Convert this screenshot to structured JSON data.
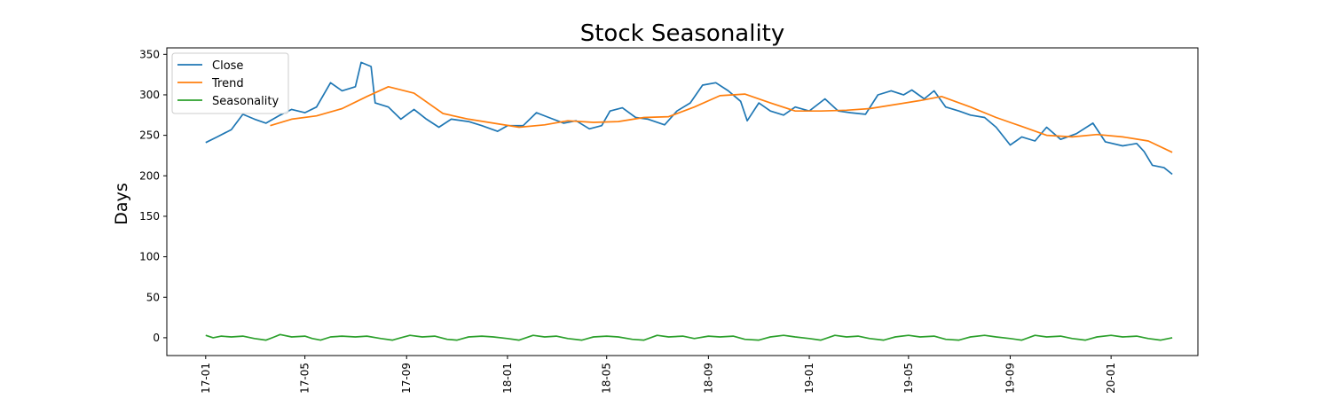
{
  "chart_data": {
    "type": "line",
    "title": "Stock Seasonality",
    "xlabel": "",
    "ylabel": "Days",
    "ylim": [
      -22,
      358
    ],
    "yticks": [
      0,
      50,
      100,
      150,
      200,
      250,
      300,
      350
    ],
    "xlim": [
      "2016-11-15",
      "2020-04-15"
    ],
    "xticks": [
      {
        "label": "17-01",
        "date": "2017-01-01"
      },
      {
        "label": "17-05",
        "date": "2017-05-01"
      },
      {
        "label": "17-09",
        "date": "2017-09-01"
      },
      {
        "label": "18-01",
        "date": "2018-01-01"
      },
      {
        "label": "18-05",
        "date": "2018-05-01"
      },
      {
        "label": "18-09",
        "date": "2018-09-01"
      },
      {
        "label": "19-01",
        "date": "2019-01-01"
      },
      {
        "label": "19-05",
        "date": "2019-05-01"
      },
      {
        "label": "19-09",
        "date": "2019-09-01"
      },
      {
        "label": "20-01",
        "date": "2020-01-01"
      }
    ],
    "legend_position": "top-left",
    "grid": false,
    "series": [
      {
        "name": "Close",
        "color": "#1f77b4",
        "points": [
          [
            "2017-01-01",
            241
          ],
          [
            "2017-01-15",
            248
          ],
          [
            "2017-02-01",
            257
          ],
          [
            "2017-02-15",
            276
          ],
          [
            "2017-03-01",
            270
          ],
          [
            "2017-03-15",
            265
          ],
          [
            "2017-04-01",
            275
          ],
          [
            "2017-04-15",
            282
          ],
          [
            "2017-05-01",
            278
          ],
          [
            "2017-05-15",
            285
          ],
          [
            "2017-06-01",
            315
          ],
          [
            "2017-06-15",
            305
          ],
          [
            "2017-07-01",
            310
          ],
          [
            "2017-07-08",
            340
          ],
          [
            "2017-07-20",
            335
          ],
          [
            "2017-07-25",
            290
          ],
          [
            "2017-08-10",
            285
          ],
          [
            "2017-08-25",
            270
          ],
          [
            "2017-09-10",
            282
          ],
          [
            "2017-09-25",
            270
          ],
          [
            "2017-10-10",
            260
          ],
          [
            "2017-10-25",
            270
          ],
          [
            "2017-11-15",
            267
          ],
          [
            "2017-12-01",
            262
          ],
          [
            "2017-12-20",
            255
          ],
          [
            "2018-01-01",
            262
          ],
          [
            "2018-01-20",
            262
          ],
          [
            "2018-02-05",
            278
          ],
          [
            "2018-02-20",
            272
          ],
          [
            "2018-03-10",
            265
          ],
          [
            "2018-03-25",
            268
          ],
          [
            "2018-04-10",
            258
          ],
          [
            "2018-04-25",
            262
          ],
          [
            "2018-05-05",
            280
          ],
          [
            "2018-05-20",
            284
          ],
          [
            "2018-06-05",
            272
          ],
          [
            "2018-06-20",
            270
          ],
          [
            "2018-07-10",
            263
          ],
          [
            "2018-07-25",
            280
          ],
          [
            "2018-08-10",
            290
          ],
          [
            "2018-08-25",
            312
          ],
          [
            "2018-09-10",
            315
          ],
          [
            "2018-09-25",
            305
          ],
          [
            "2018-10-10",
            292
          ],
          [
            "2018-10-18",
            268
          ],
          [
            "2018-11-01",
            290
          ],
          [
            "2018-11-15",
            280
          ],
          [
            "2018-12-01",
            275
          ],
          [
            "2018-12-15",
            285
          ],
          [
            "2019-01-01",
            280
          ],
          [
            "2019-01-20",
            295
          ],
          [
            "2019-02-05",
            280
          ],
          [
            "2019-02-20",
            278
          ],
          [
            "2019-03-10",
            276
          ],
          [
            "2019-03-25",
            300
          ],
          [
            "2019-04-10",
            305
          ],
          [
            "2019-04-25",
            300
          ],
          [
            "2019-05-05",
            306
          ],
          [
            "2019-05-20",
            295
          ],
          [
            "2019-06-01",
            305
          ],
          [
            "2019-06-15",
            285
          ],
          [
            "2019-07-01",
            280
          ],
          [
            "2019-07-15",
            275
          ],
          [
            "2019-08-01",
            272
          ],
          [
            "2019-08-15",
            260
          ],
          [
            "2019-09-01",
            238
          ],
          [
            "2019-09-15",
            248
          ],
          [
            "2019-10-01",
            243
          ],
          [
            "2019-10-15",
            260
          ],
          [
            "2019-11-01",
            245
          ],
          [
            "2019-11-20",
            252
          ],
          [
            "2019-12-10",
            265
          ],
          [
            "2019-12-25",
            242
          ],
          [
            "2020-01-15",
            237
          ],
          [
            "2020-02-01",
            240
          ],
          [
            "2020-02-10",
            230
          ],
          [
            "2020-02-20",
            213
          ],
          [
            "2020-03-05",
            210
          ],
          [
            "2020-03-15",
            202
          ]
        ]
      },
      {
        "name": "Trend",
        "color": "#ff7f0e",
        "points": [
          [
            "2017-03-20",
            262
          ],
          [
            "2017-04-15",
            270
          ],
          [
            "2017-05-15",
            274
          ],
          [
            "2017-06-15",
            283
          ],
          [
            "2017-07-15",
            298
          ],
          [
            "2017-08-10",
            310
          ],
          [
            "2017-09-10",
            302
          ],
          [
            "2017-10-15",
            277
          ],
          [
            "2017-11-15",
            270
          ],
          [
            "2017-12-15",
            265
          ],
          [
            "2018-01-15",
            260
          ],
          [
            "2018-02-15",
            263
          ],
          [
            "2018-03-15",
            268
          ],
          [
            "2018-04-15",
            266
          ],
          [
            "2018-05-15",
            267
          ],
          [
            "2018-06-15",
            272
          ],
          [
            "2018-07-15",
            273
          ],
          [
            "2018-08-15",
            285
          ],
          [
            "2018-09-15",
            299
          ],
          [
            "2018-10-15",
            301
          ],
          [
            "2018-11-15",
            290
          ],
          [
            "2018-12-15",
            280
          ],
          [
            "2019-01-15",
            280
          ],
          [
            "2019-02-15",
            281
          ],
          [
            "2019-03-15",
            283
          ],
          [
            "2019-04-15",
            288
          ],
          [
            "2019-05-15",
            293
          ],
          [
            "2019-06-10",
            298
          ],
          [
            "2019-07-15",
            285
          ],
          [
            "2019-08-15",
            272
          ],
          [
            "2019-09-15",
            261
          ],
          [
            "2019-10-15",
            250
          ],
          [
            "2019-11-15",
            248
          ],
          [
            "2019-12-15",
            251
          ],
          [
            "2020-01-15",
            248
          ],
          [
            "2020-02-15",
            243
          ],
          [
            "2020-03-15",
            229
          ]
        ]
      },
      {
        "name": "Seasonality",
        "color": "#2ca02c",
        "points": [
          [
            "2017-01-01",
            3
          ],
          [
            "2017-01-10",
            0
          ],
          [
            "2017-01-20",
            2
          ],
          [
            "2017-02-01",
            1
          ],
          [
            "2017-02-15",
            2
          ],
          [
            "2017-03-01",
            -1
          ],
          [
            "2017-03-15",
            -3
          ],
          [
            "2017-03-25",
            1
          ],
          [
            "2017-04-01",
            4
          ],
          [
            "2017-04-15",
            1
          ],
          [
            "2017-05-01",
            2
          ],
          [
            "2017-05-10",
            -1
          ],
          [
            "2017-05-20",
            -3
          ],
          [
            "2017-06-01",
            1
          ],
          [
            "2017-06-15",
            2
          ],
          [
            "2017-07-01",
            1
          ],
          [
            "2017-07-15",
            2
          ],
          [
            "2017-08-01",
            -1
          ],
          [
            "2017-08-15",
            -3
          ],
          [
            "2017-08-25",
            0
          ],
          [
            "2017-09-05",
            3
          ],
          [
            "2017-09-20",
            1
          ],
          [
            "2017-10-05",
            2
          ],
          [
            "2017-10-20",
            -2
          ],
          [
            "2017-11-01",
            -3
          ],
          [
            "2017-11-15",
            1
          ],
          [
            "2017-12-01",
            2
          ],
          [
            "2017-12-15",
            1
          ],
          [
            "2018-01-01",
            -1
          ],
          [
            "2018-01-15",
            -3
          ],
          [
            "2018-02-01",
            3
          ],
          [
            "2018-02-15",
            1
          ],
          [
            "2018-03-01",
            2
          ],
          [
            "2018-03-15",
            -1
          ],
          [
            "2018-04-01",
            -3
          ],
          [
            "2018-04-15",
            1
          ],
          [
            "2018-05-01",
            2
          ],
          [
            "2018-05-15",
            1
          ],
          [
            "2018-06-01",
            -2
          ],
          [
            "2018-06-15",
            -3
          ],
          [
            "2018-07-01",
            3
          ],
          [
            "2018-07-15",
            1
          ],
          [
            "2018-08-01",
            2
          ],
          [
            "2018-08-15",
            -1
          ],
          [
            "2018-09-01",
            2
          ],
          [
            "2018-09-15",
            1
          ],
          [
            "2018-10-01",
            2
          ],
          [
            "2018-10-15",
            -2
          ],
          [
            "2018-11-01",
            -3
          ],
          [
            "2018-11-15",
            1
          ],
          [
            "2018-12-01",
            3
          ],
          [
            "2018-12-15",
            1
          ],
          [
            "2019-01-01",
            -1
          ],
          [
            "2019-01-15",
            -3
          ],
          [
            "2019-02-01",
            3
          ],
          [
            "2019-02-15",
            1
          ],
          [
            "2019-03-01",
            2
          ],
          [
            "2019-03-15",
            -1
          ],
          [
            "2019-04-01",
            -3
          ],
          [
            "2019-04-15",
            1
          ],
          [
            "2019-05-01",
            3
          ],
          [
            "2019-05-15",
            1
          ],
          [
            "2019-06-01",
            2
          ],
          [
            "2019-06-15",
            -2
          ],
          [
            "2019-07-01",
            -3
          ],
          [
            "2019-07-15",
            1
          ],
          [
            "2019-08-01",
            3
          ],
          [
            "2019-08-15",
            1
          ],
          [
            "2019-09-01",
            -1
          ],
          [
            "2019-09-15",
            -3
          ],
          [
            "2019-10-01",
            3
          ],
          [
            "2019-10-15",
            1
          ],
          [
            "2019-11-01",
            2
          ],
          [
            "2019-11-15",
            -1
          ],
          [
            "2019-12-01",
            -3
          ],
          [
            "2019-12-15",
            1
          ],
          [
            "2020-01-01",
            3
          ],
          [
            "2020-01-15",
            1
          ],
          [
            "2020-02-01",
            2
          ],
          [
            "2020-02-15",
            -1
          ],
          [
            "2020-03-01",
            -3
          ],
          [
            "2020-03-15",
            0
          ]
        ]
      }
    ]
  }
}
